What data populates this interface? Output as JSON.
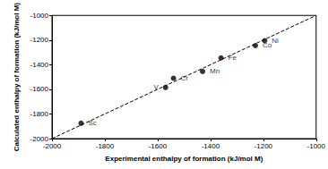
{
  "chart_data": {
    "type": "scatter",
    "x_label": "Experimental enthalpy of formation (kJ/mol M)",
    "y_label": "Calculated enthalpy of formation (kJ/mol M)",
    "xlim": [
      -2000,
      -1000
    ],
    "xticks": [
      -2000,
      -1800,
      -1600,
      -1400,
      -1200,
      -1000
    ],
    "ylim": [
      -2000,
      -1000
    ],
    "yticks": [
      -2000,
      -1800,
      -1600,
      -1400,
      -1200,
      -1000
    ],
    "grid": false,
    "series": [
      {
        "type": "scatter",
        "color": "#000000",
        "marker": "circle",
        "x": [
          -1890,
          -1570,
          -1540,
          -1430,
          -1360,
          -1230,
          -1195
        ],
        "values": [
          -1875,
          -1585,
          -1510,
          -1455,
          -1345,
          -1245,
          -1205
        ],
        "labels": [
          "Sc",
          "V",
          "Cr",
          "Mn",
          "Fe",
          "Co",
          "Ni"
        ]
      },
      {
        "type": "line",
        "color": "#000000",
        "line_style": "dashed",
        "x": [
          -2000,
          -1000
        ],
        "values": [
          -2000,
          -1000
        ]
      }
    ]
  }
}
